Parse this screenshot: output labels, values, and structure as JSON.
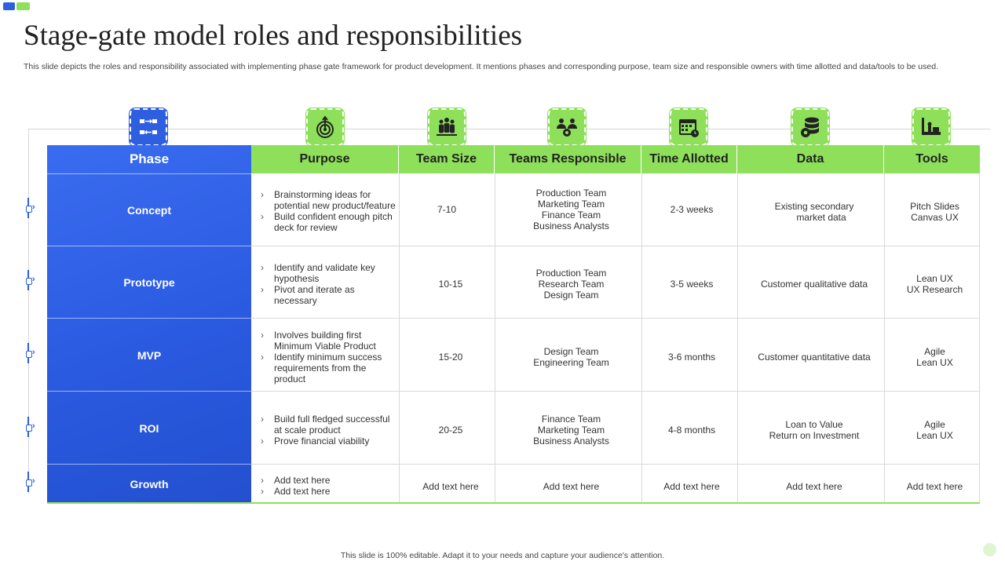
{
  "title": "Stage-gate model roles and responsibilities",
  "subtitle": "This slide depicts the roles and responsibility associated with implementing phase gate framework for product development. It mentions phases and corresponding purpose, team size and responsible owners with time allotted and data/tools to be used.",
  "headers": {
    "phase": "Phase",
    "purpose": "Purpose",
    "team_size": "Team Size",
    "teams_responsible": "Teams Responsible",
    "time_allotted": "Time Allotted",
    "data": "Data",
    "tools": "Tools"
  },
  "icons": [
    "flowchart-icon",
    "target-icon",
    "team-icon",
    "group-gear-icon",
    "calendar-icon",
    "database-gear-icon",
    "tools-icon"
  ],
  "rows": [
    {
      "phase": "Concept",
      "purpose": [
        "Brainstorming ideas for potential new product/feature",
        "Build confident enough pitch deck for review"
      ],
      "team_size": "7-10",
      "teams": [
        "Production Team",
        "Marketing Team",
        "Finance Team",
        "Business Analysts"
      ],
      "time": "2-3 weeks",
      "data": [
        "Existing secondary",
        "market data"
      ],
      "tools": [
        "Pitch Slides",
        "Canvas UX"
      ]
    },
    {
      "phase": "Prototype",
      "purpose": [
        "Identify and validate key hypothesis",
        "Pivot and iterate as necessary"
      ],
      "team_size": "10-15",
      "teams": [
        "Production Team",
        "Research Team",
        "Design Team"
      ],
      "time": "3-5 weeks",
      "data": [
        "Customer qualitative data"
      ],
      "tools": [
        "Lean UX",
        "UX Research"
      ]
    },
    {
      "phase": "MVP",
      "purpose": [
        "Involves building first Minimum Viable Product",
        "Identify minimum success requirements from the product"
      ],
      "team_size": "15-20",
      "teams": [
        "Design Team",
        "Engineering Team"
      ],
      "time": "3-6 months",
      "data": [
        "Customer quantitative data"
      ],
      "tools": [
        "Agile",
        "Lean UX"
      ]
    },
    {
      "phase": "ROI",
      "purpose": [
        "Build full fledged successful at scale product",
        "Prove financial viability"
      ],
      "team_size": "20-25",
      "teams": [
        "Finance Team",
        "Marketing Team",
        "Business Analysts"
      ],
      "time": "4-8 months",
      "data": [
        "Loan to Value",
        "Return on Investment"
      ],
      "tools": [
        "Agile",
        "Lean UX"
      ]
    },
    {
      "phase": "Growth",
      "purpose": [
        "Add text here",
        "Add text here"
      ],
      "team_size": "Add text here",
      "teams": [
        "Add text here"
      ],
      "time": "Add text here",
      "data": [
        "Add text here"
      ],
      "tools": [
        "Add text here"
      ]
    }
  ],
  "footer": "This slide is 100% editable. Adapt it to your needs and capture your audience's attention.",
  "colors": {
    "blue": "#2d5fe0",
    "green": "#8ee05a"
  }
}
